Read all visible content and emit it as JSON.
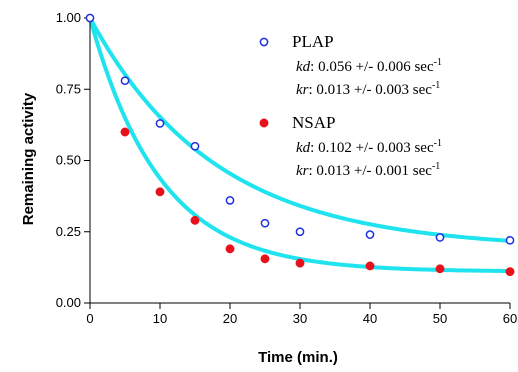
{
  "chart_data": {
    "type": "scatter",
    "xlabel": "Time (min.)",
    "ylabel": "Remaining activity",
    "xlim": [
      0,
      60
    ],
    "ylim": [
      0,
      1
    ],
    "x_ticks": [
      "0",
      "10",
      "20",
      "30",
      "40",
      "50",
      "60"
    ],
    "y_ticks": [
      "0.00",
      "0.25",
      "0.50",
      "0.75",
      "1.00"
    ],
    "grid": false,
    "legend_position": "top-right",
    "fit_color": "#1fe3ee",
    "series": [
      {
        "name": "PLAP",
        "marker": "open-circle",
        "color": "#1f2ee0",
        "points": [
          {
            "x": 0,
            "y": 1.0
          },
          {
            "x": 5,
            "y": 0.78
          },
          {
            "x": 10,
            "y": 0.63
          },
          {
            "x": 15,
            "y": 0.55
          },
          {
            "x": 20,
            "y": 0.36
          },
          {
            "x": 25,
            "y": 0.28
          },
          {
            "x": 30,
            "y": 0.25
          },
          {
            "x": 40,
            "y": 0.24
          },
          {
            "x": 50,
            "y": 0.23
          },
          {
            "x": 60,
            "y": 0.22
          }
        ],
        "fit": {
          "a": 0.81,
          "k": 0.056,
          "c": 0.19
        },
        "params": [
          {
            "sym": "kd",
            "text": ": 0.056 +/- 0.006 sec",
            "sup": "-1"
          },
          {
            "sym": "kr",
            "text": ": 0.013 +/- 0.003 sec",
            "sup": "-1"
          }
        ]
      },
      {
        "name": "NSAP",
        "marker": "filled-circle",
        "color": "#e8101a",
        "points": [
          {
            "x": 5,
            "y": 0.6
          },
          {
            "x": 10,
            "y": 0.39
          },
          {
            "x": 15,
            "y": 0.29
          },
          {
            "x": 20,
            "y": 0.19
          },
          {
            "x": 25,
            "y": 0.155
          },
          {
            "x": 30,
            "y": 0.14
          },
          {
            "x": 40,
            "y": 0.13
          },
          {
            "x": 50,
            "y": 0.12
          },
          {
            "x": 60,
            "y": 0.11
          }
        ],
        "fit": {
          "a": 0.89,
          "k": 0.1,
          "c": 0.11
        },
        "params": [
          {
            "sym": "kd",
            "text": ": 0.102 +/- 0.003 sec",
            "sup": "-1"
          },
          {
            "sym": "kr",
            "text": ": 0.013 +/- 0.001 sec",
            "sup": "-1"
          }
        ]
      }
    ]
  }
}
